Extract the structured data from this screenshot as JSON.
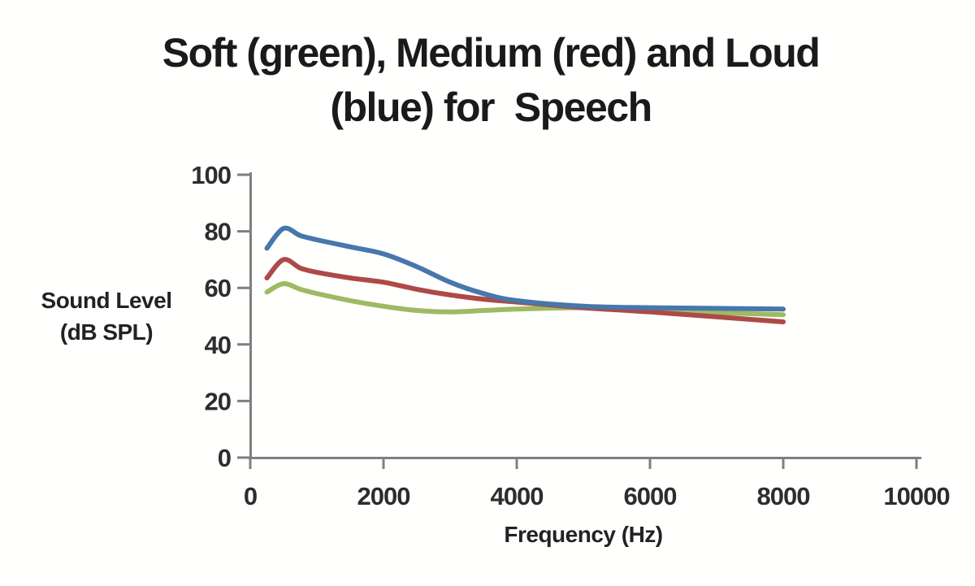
{
  "page": {
    "background_color": "#ffffff",
    "kind": "static line chart image"
  },
  "chart_data": {
    "type": "line",
    "title": "Soft (green), Medium (red) and Loud (blue) for Speech",
    "title_lines": [
      "Soft (green), Medium (red) and Loud",
      "(blue) for  Speech"
    ],
    "ylabel": "Sound Level (dB SPL)",
    "ylabel_lines": [
      "Sound Level",
      "(dB SPL)"
    ],
    "xlabel": "Frequency (Hz)",
    "xlim": [
      0,
      10000
    ],
    "ylim": [
      0,
      100
    ],
    "grid": false,
    "legend_position": "none",
    "axis_color": "#7f7f7f",
    "x_ticks": [
      {
        "value": 0,
        "label": "0"
      },
      {
        "value": 2000,
        "label": "2000"
      },
      {
        "value": 4000,
        "label": "4000"
      },
      {
        "value": 6000,
        "label": "6000"
      },
      {
        "value": 8000,
        "label": "8000"
      },
      {
        "value": 10000,
        "label": "10000"
      }
    ],
    "y_ticks": [
      {
        "value": 0,
        "label": "0"
      },
      {
        "value": 20,
        "label": "20"
      },
      {
        "value": 40,
        "label": "40"
      },
      {
        "value": 60,
        "label": "60"
      },
      {
        "value": 80,
        "label": "80"
      },
      {
        "value": 100,
        "label": "100"
      }
    ],
    "x": [
      250,
      500,
      750,
      1000,
      1500,
      2000,
      2500,
      3000,
      3500,
      4000,
      5000,
      6000,
      8000
    ],
    "series": [
      {
        "name": "Soft",
        "color_name": "green",
        "color": "#9fba62",
        "values": [
          58.5,
          61.5,
          59.5,
          58,
          55.5,
          53.5,
          52,
          51.5,
          52,
          52.5,
          53,
          52,
          50.5
        ]
      },
      {
        "name": "Medium",
        "color_name": "red",
        "color": "#ad4a47",
        "values": [
          63.5,
          70,
          67,
          65.5,
          63.5,
          62,
          59.5,
          57.5,
          56,
          55,
          53,
          51.5,
          48
        ]
      },
      {
        "name": "Loud",
        "color_name": "blue",
        "color": "#4777ab",
        "values": [
          74,
          81,
          78.5,
          77,
          74.5,
          72,
          67.5,
          62,
          58,
          55.5,
          53.5,
          53,
          52.5
        ]
      }
    ]
  }
}
